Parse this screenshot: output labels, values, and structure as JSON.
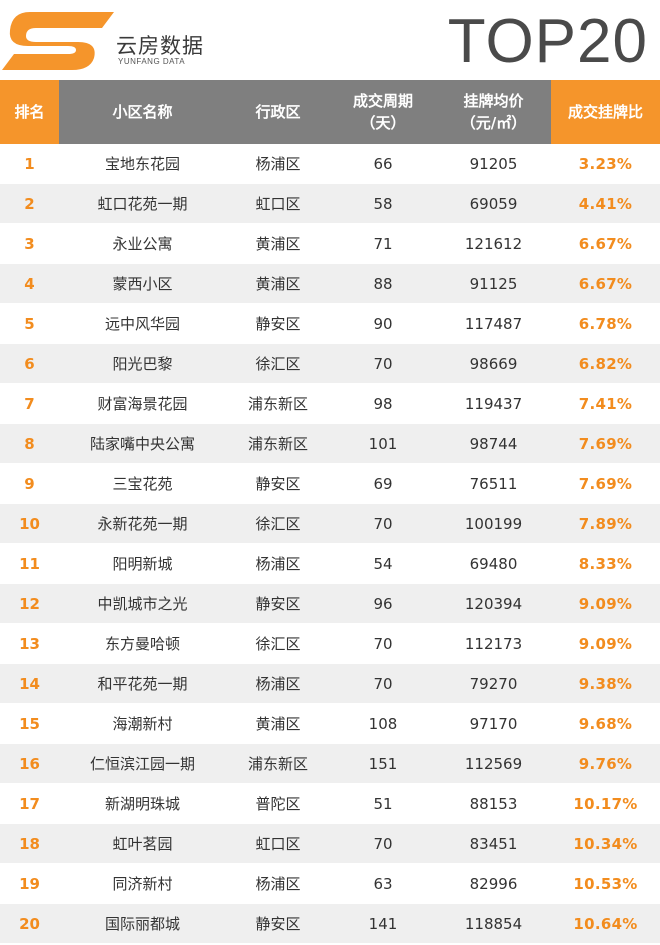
{
  "brand": {
    "name": "云房数据",
    "sub": "YUNFANG DATA",
    "title": "TOP20",
    "colors": {
      "orange": "#f5952b",
      "header_gray": "#7f7f7f",
      "logo_gray": "#4a4a4a"
    }
  },
  "table": {
    "headers": {
      "rank": "排名",
      "name": "小区名称",
      "district": "行政区",
      "cycle_l1": "成交周期",
      "cycle_l2": "（天）",
      "price_l1": "挂牌均价",
      "price_l2": "（元/㎡）",
      "ratio": "成交挂牌比"
    },
    "rows": [
      {
        "rank": "1",
        "name": "宝地东花园",
        "district": "杨浦区",
        "cycle": "66",
        "price": "91205",
        "ratio": "3.23%"
      },
      {
        "rank": "2",
        "name": "虹口花苑一期",
        "district": "虹口区",
        "cycle": "58",
        "price": "69059",
        "ratio": "4.41%"
      },
      {
        "rank": "3",
        "name": "永业公寓",
        "district": "黄浦区",
        "cycle": "71",
        "price": "121612",
        "ratio": "6.67%"
      },
      {
        "rank": "4",
        "name": "蒙西小区",
        "district": "黄浦区",
        "cycle": "88",
        "price": "91125",
        "ratio": "6.67%"
      },
      {
        "rank": "5",
        "name": "远中风华园",
        "district": "静安区",
        "cycle": "90",
        "price": "117487",
        "ratio": "6.78%"
      },
      {
        "rank": "6",
        "name": "阳光巴黎",
        "district": "徐汇区",
        "cycle": "70",
        "price": "98669",
        "ratio": "6.82%"
      },
      {
        "rank": "7",
        "name": "财富海景花园",
        "district": "浦东新区",
        "cycle": "98",
        "price": "119437",
        "ratio": "7.41%"
      },
      {
        "rank": "8",
        "name": "陆家嘴中央公寓",
        "district": "浦东新区",
        "cycle": "101",
        "price": "98744",
        "ratio": "7.69%"
      },
      {
        "rank": "9",
        "name": "三宝花苑",
        "district": "静安区",
        "cycle": "69",
        "price": "76511",
        "ratio": "7.69%"
      },
      {
        "rank": "10",
        "name": "永新花苑一期",
        "district": "徐汇区",
        "cycle": "70",
        "price": "100199",
        "ratio": "7.89%"
      },
      {
        "rank": "11",
        "name": "阳明新城",
        "district": "杨浦区",
        "cycle": "54",
        "price": "69480",
        "ratio": "8.33%"
      },
      {
        "rank": "12",
        "name": "中凯城市之光",
        "district": "静安区",
        "cycle": "96",
        "price": "120394",
        "ratio": "9.09%"
      },
      {
        "rank": "13",
        "name": "东方曼哈顿",
        "district": "徐汇区",
        "cycle": "70",
        "price": "112173",
        "ratio": "9.09%"
      },
      {
        "rank": "14",
        "name": "和平花苑一期",
        "district": "杨浦区",
        "cycle": "70",
        "price": "79270",
        "ratio": "9.38%"
      },
      {
        "rank": "15",
        "name": "海潮新村",
        "district": "黄浦区",
        "cycle": "108",
        "price": "97170",
        "ratio": "9.68%"
      },
      {
        "rank": "16",
        "name": "仁恒滨江园一期",
        "district": "浦东新区",
        "cycle": "151",
        "price": "112569",
        "ratio": "9.76%"
      },
      {
        "rank": "17",
        "name": "新湖明珠城",
        "district": "普陀区",
        "cycle": "51",
        "price": "88153",
        "ratio": "10.17%"
      },
      {
        "rank": "18",
        "name": "虹叶茗园",
        "district": "虹口区",
        "cycle": "70",
        "price": "83451",
        "ratio": "10.34%"
      },
      {
        "rank": "19",
        "name": "同济新村",
        "district": "杨浦区",
        "cycle": "63",
        "price": "82996",
        "ratio": "10.53%"
      },
      {
        "rank": "20",
        "name": "国际丽都城",
        "district": "静安区",
        "cycle": "141",
        "price": "118854",
        "ratio": "10.64%"
      }
    ]
  }
}
